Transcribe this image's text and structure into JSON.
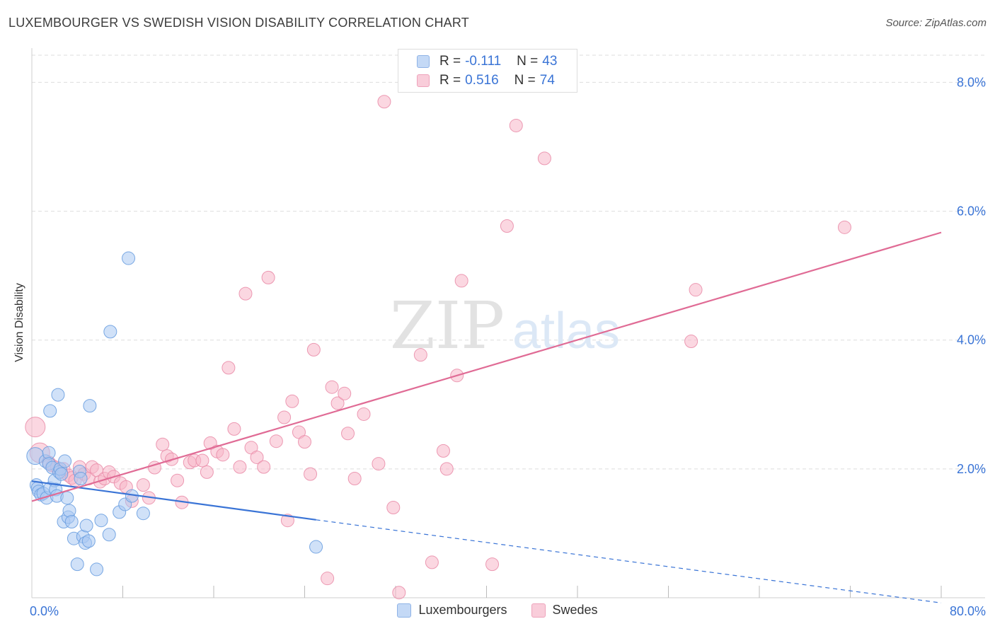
{
  "title": "LUXEMBOURGER VS SWEDISH VISION DISABILITY CORRELATION CHART",
  "source": "Source: ZipAtlas.com",
  "watermark": {
    "zip": "ZIP",
    "atlas": "atlas"
  },
  "legend": {
    "rows": [
      {
        "r_label": "R =",
        "r_value": "-0.111",
        "n_label": "N =",
        "n_value": "43",
        "color": "#a9c8f3"
      },
      {
        "r_label": "R =",
        "r_value": "0.516",
        "n_label": "N =",
        "n_value": "74",
        "color": "#f7b6c9"
      }
    ]
  },
  "bottom_legend": [
    {
      "label": "Luxembourgers",
      "color": "#a9c8f3"
    },
    {
      "label": "Swedes",
      "color": "#f7b6c9"
    }
  ],
  "chart_data": {
    "type": "scatter",
    "title": "LUXEMBOURGER VS SWEDISH VISION DISABILITY CORRELATION CHART",
    "xlabel": "",
    "ylabel": "Vision Disability",
    "xlim": [
      0,
      80
    ],
    "ylim": [
      0,
      8.4
    ],
    "x_tick_labels": [
      "0.0%",
      "80.0%"
    ],
    "y_ticks": [
      2,
      4,
      6,
      8
    ],
    "y_tick_labels": [
      "2.0%",
      "4.0%",
      "6.0%",
      "8.0%"
    ],
    "grid": true,
    "colors": {
      "blue_fill": "#a9c8f3",
      "blue_stroke": "#6a9ee0",
      "blue_line": "#3a74d6",
      "pink_fill": "#f7b6c9",
      "pink_stroke": "#ea8fab",
      "pink_line": "#e06b95",
      "grid": "#dddddd",
      "tick_text": "#3a74d6"
    },
    "series": [
      {
        "name": "Luxembourgers",
        "r": -0.111,
        "n": 43,
        "trend": {
          "x0": 0,
          "y0": 1.81,
          "x1": 25,
          "y1": 1.21,
          "dash_to_x": 80,
          "dash_to_y": -0.08
        },
        "points": [
          {
            "x": 0.3,
            "y": 2.2,
            "s": 12
          },
          {
            "x": 0.4,
            "y": 1.75,
            "s": 9
          },
          {
            "x": 0.5,
            "y": 1.7,
            "s": 9
          },
          {
            "x": 0.6,
            "y": 1.65,
            "s": 9
          },
          {
            "x": 0.8,
            "y": 1.6,
            "s": 9
          },
          {
            "x": 1.0,
            "y": 1.62,
            "s": 9
          },
          {
            "x": 1.2,
            "y": 2.12,
            "s": 9
          },
          {
            "x": 1.3,
            "y": 1.55,
            "s": 9
          },
          {
            "x": 1.5,
            "y": 2.25,
            "s": 9
          },
          {
            "x": 1.5,
            "y": 2.08,
            "s": 9
          },
          {
            "x": 1.6,
            "y": 1.7,
            "s": 9
          },
          {
            "x": 1.6,
            "y": 2.9,
            "s": 9
          },
          {
            "x": 1.8,
            "y": 2.02,
            "s": 9
          },
          {
            "x": 2.0,
            "y": 1.82,
            "s": 9
          },
          {
            "x": 2.1,
            "y": 1.68,
            "s": 9
          },
          {
            "x": 2.2,
            "y": 1.58,
            "s": 9
          },
          {
            "x": 2.3,
            "y": 3.15,
            "s": 9
          },
          {
            "x": 2.4,
            "y": 1.95,
            "s": 9
          },
          {
            "x": 2.5,
            "y": 2.0,
            "s": 9
          },
          {
            "x": 2.6,
            "y": 1.92,
            "s": 9
          },
          {
            "x": 2.8,
            "y": 1.18,
            "s": 9
          },
          {
            "x": 2.9,
            "y": 2.12,
            "s": 9
          },
          {
            "x": 3.1,
            "y": 1.55,
            "s": 9
          },
          {
            "x": 3.2,
            "y": 1.25,
            "s": 9
          },
          {
            "x": 3.3,
            "y": 1.35,
            "s": 9
          },
          {
            "x": 3.5,
            "y": 1.18,
            "s": 9
          },
          {
            "x": 3.7,
            "y": 0.92,
            "s": 9
          },
          {
            "x": 4.0,
            "y": 0.52,
            "s": 9
          },
          {
            "x": 4.2,
            "y": 1.96,
            "s": 9
          },
          {
            "x": 4.3,
            "y": 1.85,
            "s": 9
          },
          {
            "x": 4.5,
            "y": 0.95,
            "s": 9
          },
          {
            "x": 4.7,
            "y": 0.85,
            "s": 9
          },
          {
            "x": 4.8,
            "y": 1.12,
            "s": 9
          },
          {
            "x": 5.0,
            "y": 0.88,
            "s": 9
          },
          {
            "x": 5.1,
            "y": 2.98,
            "s": 9
          },
          {
            "x": 5.7,
            "y": 0.44,
            "s": 9
          },
          {
            "x": 6.1,
            "y": 1.2,
            "s": 9
          },
          {
            "x": 6.9,
            "y": 4.13,
            "s": 9
          },
          {
            "x": 6.8,
            "y": 0.98,
            "s": 9
          },
          {
            "x": 7.7,
            "y": 1.33,
            "s": 9
          },
          {
            "x": 8.2,
            "y": 1.45,
            "s": 9
          },
          {
            "x": 8.5,
            "y": 5.27,
            "s": 9
          },
          {
            "x": 8.8,
            "y": 1.58,
            "s": 9
          },
          {
            "x": 9.8,
            "y": 1.31,
            "s": 9
          },
          {
            "x": 25.0,
            "y": 0.79,
            "s": 9
          }
        ]
      },
      {
        "name": "Swedes",
        "r": 0.516,
        "n": 74,
        "trend": {
          "x0": 0,
          "y0": 1.5,
          "x1": 80,
          "y1": 5.67
        },
        "points": [
          {
            "x": 0.3,
            "y": 2.65,
            "s": 14
          },
          {
            "x": 0.7,
            "y": 2.25,
            "s": 14
          },
          {
            "x": 1.5,
            "y": 2.1,
            "s": 9
          },
          {
            "x": 1.8,
            "y": 2.05,
            "s": 9
          },
          {
            "x": 2.2,
            "y": 2.02,
            "s": 9
          },
          {
            "x": 2.6,
            "y": 1.95,
            "s": 9
          },
          {
            "x": 2.8,
            "y": 2.0,
            "s": 9
          },
          {
            "x": 3.2,
            "y": 1.9,
            "s": 9
          },
          {
            "x": 3.5,
            "y": 1.86,
            "s": 9
          },
          {
            "x": 3.8,
            "y": 1.82,
            "s": 9
          },
          {
            "x": 4.2,
            "y": 2.03,
            "s": 9
          },
          {
            "x": 4.6,
            "y": 1.92,
            "s": 9
          },
          {
            "x": 5.0,
            "y": 1.85,
            "s": 9
          },
          {
            "x": 5.3,
            "y": 2.03,
            "s": 9
          },
          {
            "x": 5.7,
            "y": 1.98,
            "s": 9
          },
          {
            "x": 6.0,
            "y": 1.8,
            "s": 9
          },
          {
            "x": 6.4,
            "y": 1.85,
            "s": 9
          },
          {
            "x": 6.8,
            "y": 1.95,
            "s": 9
          },
          {
            "x": 7.2,
            "y": 1.88,
            "s": 9
          },
          {
            "x": 7.8,
            "y": 1.78,
            "s": 9
          },
          {
            "x": 8.3,
            "y": 1.72,
            "s": 9
          },
          {
            "x": 8.8,
            "y": 1.5,
            "s": 9
          },
          {
            "x": 9.8,
            "y": 1.75,
            "s": 9
          },
          {
            "x": 10.3,
            "y": 1.55,
            "s": 9
          },
          {
            "x": 10.8,
            "y": 2.02,
            "s": 9
          },
          {
            "x": 11.5,
            "y": 2.38,
            "s": 9
          },
          {
            "x": 11.9,
            "y": 2.2,
            "s": 9
          },
          {
            "x": 12.3,
            "y": 2.15,
            "s": 9
          },
          {
            "x": 12.8,
            "y": 1.82,
            "s": 9
          },
          {
            "x": 13.2,
            "y": 1.48,
            "s": 9
          },
          {
            "x": 13.9,
            "y": 2.1,
            "s": 9
          },
          {
            "x": 14.3,
            "y": 2.13,
            "s": 9
          },
          {
            "x": 15.0,
            "y": 2.13,
            "s": 9
          },
          {
            "x": 15.4,
            "y": 1.95,
            "s": 9
          },
          {
            "x": 15.7,
            "y": 2.4,
            "s": 9
          },
          {
            "x": 16.3,
            "y": 2.27,
            "s": 9
          },
          {
            "x": 16.8,
            "y": 2.22,
            "s": 9
          },
          {
            "x": 17.3,
            "y": 3.57,
            "s": 9
          },
          {
            "x": 17.8,
            "y": 2.62,
            "s": 9
          },
          {
            "x": 18.3,
            "y": 2.03,
            "s": 9
          },
          {
            "x": 18.8,
            "y": 4.72,
            "s": 9
          },
          {
            "x": 19.3,
            "y": 2.33,
            "s": 9
          },
          {
            "x": 19.8,
            "y": 2.18,
            "s": 9
          },
          {
            "x": 20.4,
            "y": 2.03,
            "s": 9
          },
          {
            "x": 20.8,
            "y": 4.97,
            "s": 9
          },
          {
            "x": 21.5,
            "y": 2.43,
            "s": 9
          },
          {
            "x": 22.2,
            "y": 2.8,
            "s": 9
          },
          {
            "x": 22.5,
            "y": 1.2,
            "s": 9
          },
          {
            "x": 22.9,
            "y": 3.05,
            "s": 9
          },
          {
            "x": 23.5,
            "y": 2.57,
            "s": 9
          },
          {
            "x": 24.0,
            "y": 2.42,
            "s": 9
          },
          {
            "x": 24.5,
            "y": 1.92,
            "s": 9
          },
          {
            "x": 24.8,
            "y": 3.85,
            "s": 9
          },
          {
            "x": 26.0,
            "y": 0.3,
            "s": 9
          },
          {
            "x": 26.4,
            "y": 3.27,
            "s": 9
          },
          {
            "x": 26.9,
            "y": 3.02,
            "s": 9
          },
          {
            "x": 27.5,
            "y": 3.17,
            "s": 9
          },
          {
            "x": 27.8,
            "y": 2.55,
            "s": 9
          },
          {
            "x": 28.4,
            "y": 1.85,
            "s": 9
          },
          {
            "x": 29.2,
            "y": 2.85,
            "s": 9
          },
          {
            "x": 30.5,
            "y": 2.08,
            "s": 9
          },
          {
            "x": 31.0,
            "y": 7.7,
            "s": 9
          },
          {
            "x": 31.8,
            "y": 1.4,
            "s": 9
          },
          {
            "x": 32.3,
            "y": 0.08,
            "s": 9
          },
          {
            "x": 34.2,
            "y": 3.77,
            "s": 9
          },
          {
            "x": 35.2,
            "y": 0.55,
            "s": 9
          },
          {
            "x": 36.2,
            "y": 2.28,
            "s": 9
          },
          {
            "x": 36.5,
            "y": 2.0,
            "s": 9
          },
          {
            "x": 37.4,
            "y": 3.45,
            "s": 9
          },
          {
            "x": 37.8,
            "y": 4.92,
            "s": 9
          },
          {
            "x": 40.5,
            "y": 0.52,
            "s": 9
          },
          {
            "x": 41.8,
            "y": 5.77,
            "s": 9
          },
          {
            "x": 42.6,
            "y": 7.33,
            "s": 9
          },
          {
            "x": 45.1,
            "y": 6.82,
            "s": 9
          },
          {
            "x": 58.0,
            "y": 3.98,
            "s": 9
          },
          {
            "x": 58.4,
            "y": 4.78,
            "s": 9
          },
          {
            "x": 71.5,
            "y": 5.75,
            "s": 9
          }
        ]
      }
    ]
  }
}
